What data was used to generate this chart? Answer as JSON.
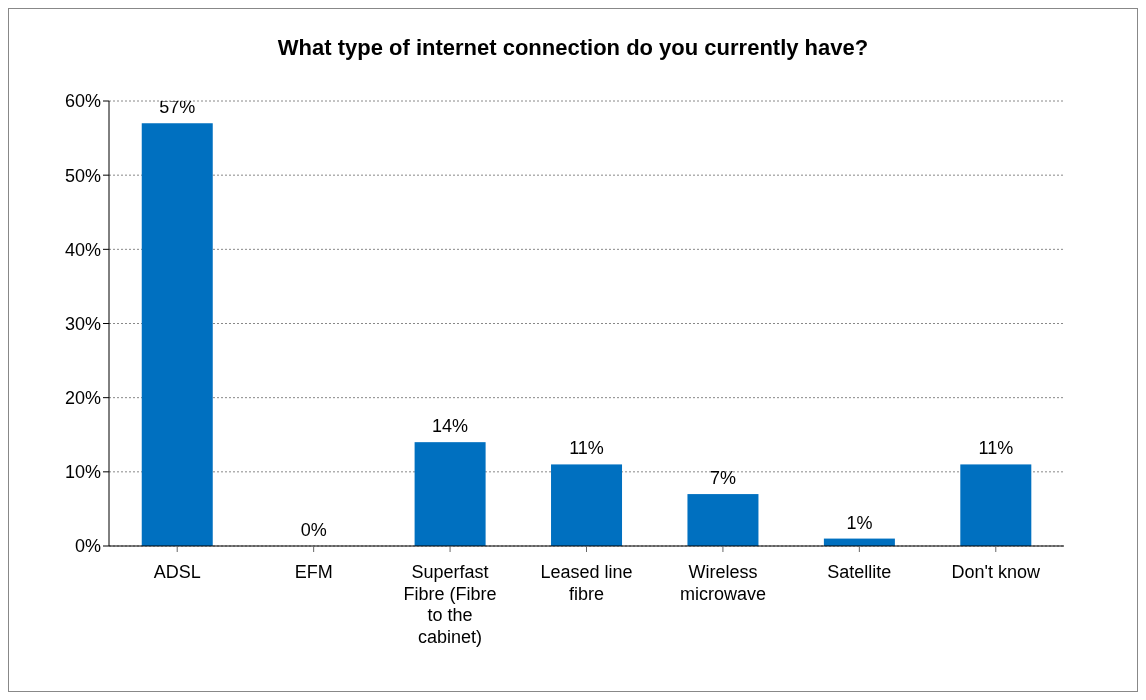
{
  "chart_data": {
    "type": "bar",
    "title": "What type of internet connection do you currently have?",
    "categories": [
      "ADSL",
      "EFM",
      "Superfast Fibre (Fibre to the cabinet)",
      "Leased line fibre",
      "Wireless microwave",
      "Satellite",
      "Don't know"
    ],
    "values": [
      57,
      0,
      14,
      11,
      7,
      1,
      11
    ],
    "value_labels": [
      "57%",
      "0%",
      "14%",
      "11%",
      "7%",
      "1%",
      "11%"
    ],
    "color": "#0070c0",
    "ylim": [
      0,
      60
    ],
    "yticks": [
      {
        "value": 0,
        "label": "0%"
      },
      {
        "value": 10,
        "label": "10%"
      },
      {
        "value": 20,
        "label": "20%"
      },
      {
        "value": 30,
        "label": "30%"
      },
      {
        "value": 40,
        "label": "40%"
      },
      {
        "value": 50,
        "label": "50%"
      },
      {
        "value": 60,
        "label": "60%"
      }
    ],
    "grid": "y"
  }
}
